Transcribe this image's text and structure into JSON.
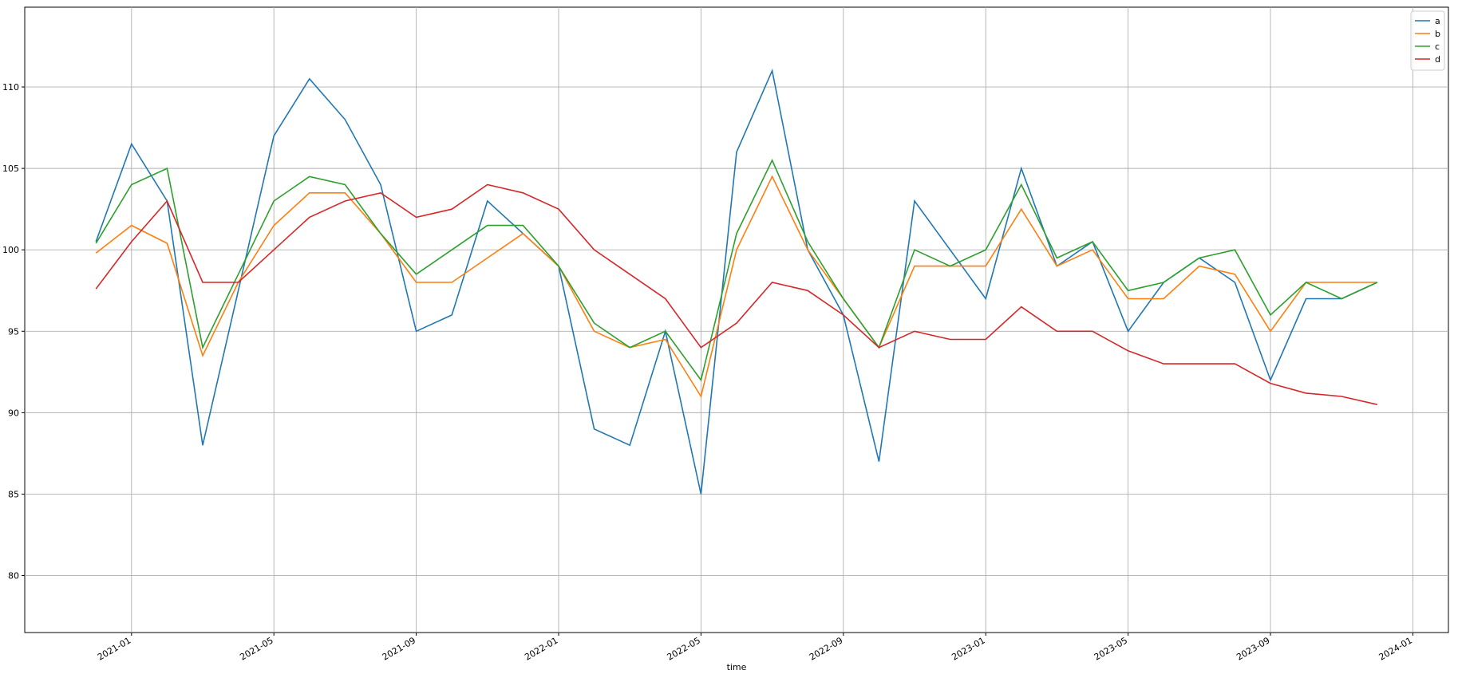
{
  "chart_data": {
    "type": "line",
    "x_label": "time",
    "x": [
      "2020-12",
      "2021-01",
      "2021-02",
      "2021-03",
      "2021-04",
      "2021-05",
      "2021-06",
      "2021-07",
      "2021-08",
      "2021-09",
      "2021-10",
      "2021-11",
      "2021-12",
      "2022-01",
      "2022-02",
      "2022-03",
      "2022-04",
      "2022-05",
      "2022-06",
      "2022-07",
      "2022-08",
      "2022-09",
      "2022-10",
      "2022-11",
      "2022-12",
      "2023-01",
      "2023-02",
      "2023-03",
      "2023-04",
      "2023-05",
      "2023-06",
      "2023-07",
      "2023-08",
      "2023-09",
      "2023-10",
      "2023-11",
      "2023-12"
    ],
    "series": [
      {
        "name": "a",
        "color": "#1f77b4",
        "values": [
          100.5,
          106.5,
          103,
          88,
          97.5,
          107,
          110.5,
          108,
          104,
          95,
          96,
          103,
          101,
          99,
          89,
          88,
          95,
          85,
          106,
          111,
          100,
          96,
          87,
          103,
          100,
          97,
          105,
          99,
          100.5,
          95,
          98,
          99.5,
          98,
          92,
          97,
          97,
          98
        ]
      },
      {
        "name": "b",
        "color": "#ff7f0e",
        "values": [
          99.8,
          101.5,
          100.4,
          93.5,
          98,
          101.5,
          103.5,
          103.5,
          101,
          98,
          98,
          99.5,
          101,
          99,
          95,
          94,
          94.5,
          91,
          100,
          104.5,
          100,
          97,
          94,
          99,
          99,
          99,
          102.5,
          99,
          100,
          97,
          97,
          99,
          98.5,
          95,
          98,
          98,
          98
        ]
      },
      {
        "name": "c",
        "color": "#2ca02c",
        "values": [
          100.4,
          104,
          105,
          94,
          98.5,
          103,
          104.5,
          104,
          101,
          98.5,
          100,
          101.5,
          101.5,
          99,
          95.5,
          94,
          95,
          92,
          101,
          105.5,
          100.5,
          97,
          94,
          100,
          99,
          100,
          104,
          99.5,
          100.5,
          97.5,
          98,
          99.5,
          100,
          96,
          98,
          97,
          98
        ]
      },
      {
        "name": "d",
        "color": "#d62728",
        "values": [
          97.6,
          100.5,
          103,
          98,
          98,
          100,
          102,
          103,
          103.5,
          102,
          102.5,
          104,
          103.5,
          102.5,
          100,
          98.5,
          97,
          94,
          95.5,
          98,
          97.5,
          96,
          94,
          95,
          94.5,
          94.5,
          96.5,
          95,
          95,
          93.8,
          93,
          93,
          93,
          91.8,
          91.2,
          91,
          90.5
        ]
      }
    ],
    "xlim": [
      "2020-10",
      "2024-02"
    ],
    "xticks": [
      "2021-01",
      "2021-05",
      "2021-09",
      "2022-01",
      "2022-05",
      "2022-09",
      "2023-01",
      "2023-05",
      "2023-09",
      "2024-01"
    ],
    "ylim": [
      76.5,
      114.9
    ],
    "yticks": [
      80,
      85,
      90,
      95,
      100,
      105,
      110
    ],
    "grid": true,
    "legend": "upper right"
  }
}
